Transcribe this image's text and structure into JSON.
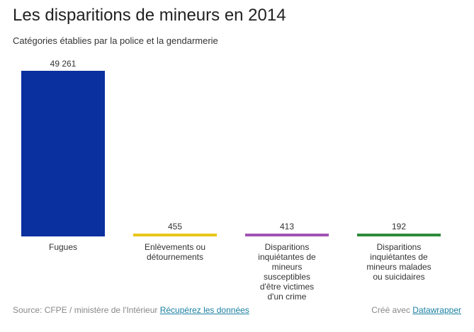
{
  "header": {
    "title": "Les disparitions de mineurs en 2014",
    "subtitle": "Catégories établies par la police et la gendarmerie"
  },
  "footer": {
    "source_text": "Source: CFPE / ministère de l'Intérieur",
    "data_link": "Récupérez les données",
    "credit_text": "Créé avec",
    "credit_link": "Datawrapper"
  },
  "chart_data": {
    "type": "bar",
    "title": "Les disparitions de mineurs en 2014",
    "subtitle": "Catégories établies par la police et la gendarmerie",
    "categories": [
      "Fugues",
      "Enlèvements ou détournements",
      "Disparitions inquiétantes de mineurs susceptibles d'être victimes d'un crime",
      "Disparitions inquiétantes de mineurs malades ou suicidaires"
    ],
    "category_lines": [
      [
        "Fugues"
      ],
      [
        "Enlèvements ou",
        "détournements"
      ],
      [
        "Disparitions",
        "inquiétantes de",
        "mineurs",
        "susceptibles",
        "d'être victimes",
        "d'un crime"
      ],
      [
        "Disparitions",
        "inquiétantes de",
        "mineurs malades",
        "ou suicidaires"
      ]
    ],
    "values": [
      49261,
      455,
      413,
      192
    ],
    "value_labels": [
      "49 261",
      "455",
      "413",
      "192"
    ],
    "colors": [
      "#0a2f9f",
      "#e8c619",
      "#a253b4",
      "#2e8b3a"
    ],
    "ylim": [
      0,
      49261
    ],
    "grid": false,
    "legend": "none"
  }
}
